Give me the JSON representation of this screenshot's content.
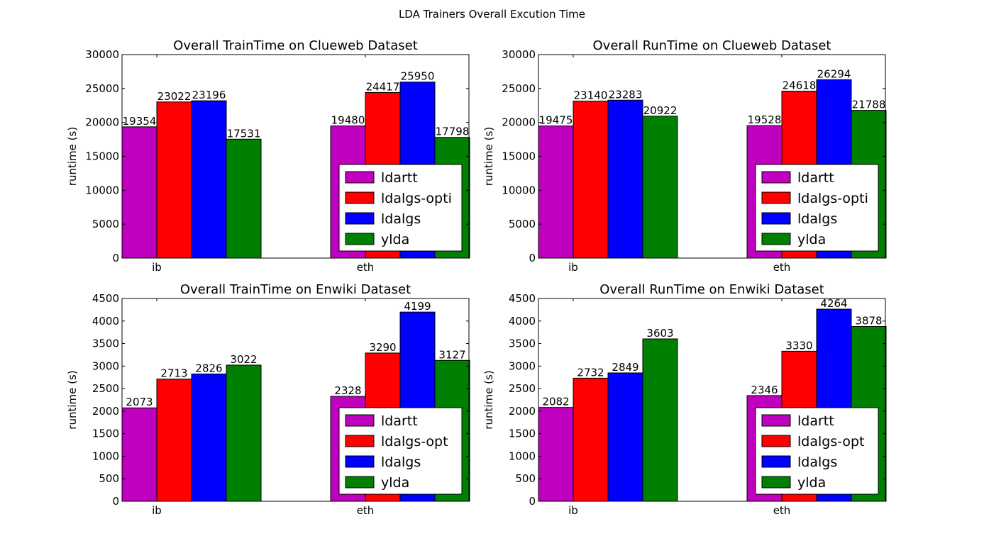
{
  "figure": {
    "suptitle": "LDA Trainers Overall Excution Time"
  },
  "chart_data": [
    {
      "type": "bar",
      "title": "Overall TrainTime on Clueweb Dataset",
      "xlabel": "",
      "ylabel": "runtime (s)",
      "categories": [
        "ib",
        "eth"
      ],
      "ylim": [
        0,
        30000
      ],
      "yticks": [
        "0",
        "5000",
        "10000",
        "15000",
        "20000",
        "25000",
        "30000"
      ],
      "grid": false,
      "legend_position": "lower-right",
      "series": [
        {
          "name": "ldartt",
          "color": "#bf00bf",
          "values": [
            19354,
            19480
          ]
        },
        {
          "name": "ldalgs-opti",
          "color": "#ff0000",
          "values": [
            23022,
            24417
          ]
        },
        {
          "name": "ldalgs",
          "color": "#0000ff",
          "values": [
            23196,
            25950
          ]
        },
        {
          "name": "ylda",
          "color": "#008000",
          "values": [
            17531,
            17798
          ]
        }
      ]
    },
    {
      "type": "bar",
      "title": "Overall RunTime on Clueweb Dataset",
      "xlabel": "",
      "ylabel": "runtime (s)",
      "categories": [
        "ib",
        "eth"
      ],
      "ylim": [
        0,
        30000
      ],
      "yticks": [
        "0",
        "5000",
        "10000",
        "15000",
        "20000",
        "25000",
        "30000"
      ],
      "grid": false,
      "legend_position": "lower-right",
      "series": [
        {
          "name": "ldartt",
          "color": "#bf00bf",
          "values": [
            19475,
            19528
          ]
        },
        {
          "name": "ldalgs-opti",
          "color": "#ff0000",
          "values": [
            23140,
            24618
          ]
        },
        {
          "name": "ldalgs",
          "color": "#0000ff",
          "values": [
            23283,
            26294
          ]
        },
        {
          "name": "ylda",
          "color": "#008000",
          "values": [
            20922,
            21788
          ]
        }
      ]
    },
    {
      "type": "bar",
      "title": "Overall TrainTime on Enwiki Dataset",
      "xlabel": "",
      "ylabel": "runtime (s)",
      "categories": [
        "ib",
        "eth"
      ],
      "ylim": [
        0,
        4500
      ],
      "yticks": [
        "0",
        "500",
        "1000",
        "1500",
        "2000",
        "2500",
        "3000",
        "3500",
        "4000",
        "4500"
      ],
      "grid": false,
      "legend_position": "lower-right",
      "series": [
        {
          "name": "ldartt",
          "color": "#bf00bf",
          "values": [
            2073,
            2328
          ]
        },
        {
          "name": "ldalgs-opt",
          "color": "#ff0000",
          "values": [
            2713,
            3290
          ]
        },
        {
          "name": "ldalgs",
          "color": "#0000ff",
          "values": [
            2826,
            4199
          ]
        },
        {
          "name": "ylda",
          "color": "#008000",
          "values": [
            3022,
            3127
          ]
        }
      ]
    },
    {
      "type": "bar",
      "title": "Overall RunTime on Enwiki Dataset",
      "xlabel": "",
      "ylabel": "runtime (s)",
      "categories": [
        "ib",
        "eth"
      ],
      "ylim": [
        0,
        4500
      ],
      "yticks": [
        "0",
        "500",
        "1000",
        "1500",
        "2000",
        "2500",
        "3000",
        "3500",
        "4000",
        "4500"
      ],
      "grid": false,
      "legend_position": "lower-right",
      "series": [
        {
          "name": "ldartt",
          "color": "#bf00bf",
          "values": [
            2082,
            2346
          ]
        },
        {
          "name": "ldalgs-opt",
          "color": "#ff0000",
          "values": [
            2732,
            3330
          ]
        },
        {
          "name": "ldalgs",
          "color": "#0000ff",
          "values": [
            2849,
            4264
          ]
        },
        {
          "name": "ylda",
          "color": "#008000",
          "values": [
            3603,
            3878
          ]
        }
      ]
    }
  ]
}
